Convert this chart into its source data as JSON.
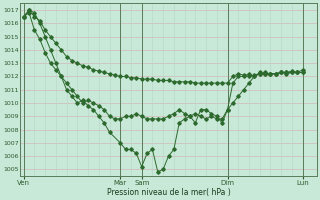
{
  "xlabel": "Pression niveau de la mer( hPa )",
  "bg_color": "#c8e8d8",
  "line_color": "#2d6a2d",
  "grid_color_h": "#d4b8b8",
  "grid_color_v": "#b8d4c8",
  "ylim": [
    1004.5,
    1017.5
  ],
  "yticks": [
    1005,
    1006,
    1007,
    1008,
    1009,
    1010,
    1011,
    1012,
    1013,
    1014,
    1015,
    1016,
    1017
  ],
  "xlim": [
    -0.3,
    27.3
  ],
  "xtick_labels": [
    "Ven",
    "Mar",
    "Sam",
    "Dim",
    "Lun"
  ],
  "xtick_positions": [
    0,
    9,
    11,
    19,
    26
  ],
  "line1_x": [
    0,
    0.5,
    1.0,
    1.5,
    2.0,
    2.5,
    3.0,
    3.5,
    4.0,
    4.5,
    5.0,
    5.5,
    6.0,
    6.5,
    7.0,
    7.5,
    8.0,
    8.5,
    9.0,
    9.5,
    10.0,
    10.5,
    11.0,
    11.5,
    12.0,
    12.5,
    13.0,
    13.5,
    14.0,
    14.5,
    15.0,
    15.5,
    16.0,
    16.5,
    17.0,
    17.5,
    18.0,
    18.5,
    19.0,
    19.5,
    20.0,
    20.5,
    21.0,
    21.5,
    22.0,
    22.5,
    23.0,
    23.5,
    24.0,
    24.5,
    25.0,
    25.5,
    26.0
  ],
  "line1_y": [
    1016.5,
    1017.0,
    1016.5,
    1016.2,
    1015.5,
    1015.0,
    1014.5,
    1014.0,
    1013.5,
    1013.2,
    1013.0,
    1012.8,
    1012.7,
    1012.5,
    1012.4,
    1012.3,
    1012.2,
    1012.1,
    1012.0,
    1012.0,
    1011.9,
    1011.9,
    1011.8,
    1011.8,
    1011.8,
    1011.7,
    1011.7,
    1011.7,
    1011.6,
    1011.6,
    1011.6,
    1011.6,
    1011.5,
    1011.5,
    1011.5,
    1011.5,
    1011.5,
    1011.5,
    1011.5,
    1012.0,
    1012.2,
    1012.1,
    1012.0,
    1012.1,
    1012.2,
    1012.3,
    1012.2,
    1012.2,
    1012.3,
    1012.3,
    1012.3,
    1012.3,
    1012.3
  ],
  "line2_x": [
    0,
    0.5,
    1.0,
    1.5,
    2.0,
    2.5,
    3.0,
    3.5,
    4.0,
    4.5,
    5.0,
    5.5,
    6.0,
    6.5,
    7.0,
    7.5,
    8.0,
    8.5,
    9.0,
    9.5,
    10.0,
    10.5,
    11.0,
    11.5,
    12.0,
    12.5,
    13.0,
    13.5,
    14.0,
    14.5,
    15.0,
    15.5,
    16.0,
    16.5,
    17.0,
    17.5,
    18.0,
    18.5,
    19.0,
    19.5,
    20.0,
    20.5,
    21.0,
    21.5,
    22.0,
    22.5,
    23.0,
    23.5,
    24.0,
    24.5,
    25.0,
    25.5,
    26.0
  ],
  "line2_y": [
    1016.5,
    1016.8,
    1015.5,
    1014.8,
    1013.8,
    1013.0,
    1012.5,
    1012.0,
    1011.5,
    1011.0,
    1010.5,
    1010.0,
    1010.2,
    1010.0,
    1009.8,
    1009.5,
    1009.0,
    1008.8,
    1008.8,
    1009.0,
    1009.0,
    1009.2,
    1009.0,
    1008.8,
    1008.8,
    1008.8,
    1008.8,
    1009.0,
    1009.2,
    1009.5,
    1009.2,
    1009.0,
    1009.2,
    1009.0,
    1008.8,
    1009.0,
    1008.8,
    1008.8,
    1009.5,
    1010.0,
    1010.5,
    1011.0,
    1011.5,
    1012.0,
    1012.3,
    1012.2,
    1012.2,
    1012.2,
    1012.3,
    1012.3,
    1012.4,
    1012.3,
    1012.5
  ],
  "line3_x": [
    0,
    0.5,
    1.0,
    1.5,
    2.0,
    2.5,
    3.0,
    3.5,
    4.0,
    4.5,
    5.0,
    5.5,
    6.0,
    6.5,
    7.0,
    7.5,
    8.0,
    9.0,
    9.5,
    10.0,
    10.5,
    11.0,
    11.5,
    12.0,
    12.5,
    13.0,
    13.5,
    14.0,
    14.5,
    15.0,
    15.5,
    16.0,
    16.5,
    17.0,
    17.5,
    18.0,
    18.5,
    19.0,
    19.5,
    20.0,
    20.5,
    21.0,
    21.5,
    22.0,
    22.5,
    23.0,
    23.5,
    24.0,
    24.5,
    25.0,
    25.5,
    26.0
  ],
  "line3_y": [
    1016.5,
    1017.0,
    1016.8,
    1016.0,
    1015.0,
    1014.0,
    1013.0,
    1012.0,
    1011.0,
    1010.5,
    1010.0,
    1010.2,
    1009.8,
    1009.5,
    1009.0,
    1008.5,
    1007.8,
    1007.0,
    1006.5,
    1006.5,
    1006.2,
    1005.2,
    1006.2,
    1006.5,
    1004.8,
    1005.0,
    1006.0,
    1006.5,
    1008.5,
    1008.8,
    1009.0,
    1008.5,
    1009.5,
    1009.5,
    1009.2,
    1009.0,
    1008.5,
    1009.5,
    1011.5,
    1012.0,
    1012.0,
    1012.2,
    1012.0,
    1012.2,
    1012.2,
    1012.2,
    1012.2,
    1012.3,
    1012.2,
    1012.3,
    1012.3,
    1012.3
  ]
}
